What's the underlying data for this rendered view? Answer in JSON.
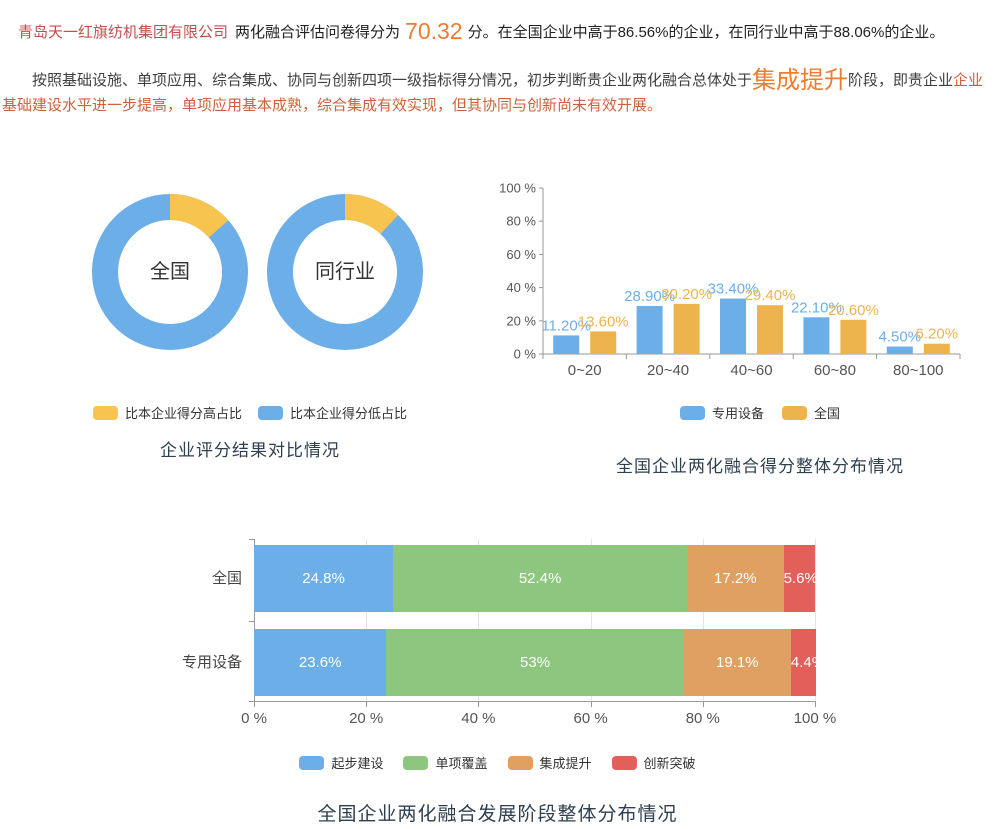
{
  "intro": {
    "company": "青岛天一红旗纺机集团有限公司",
    "lead": "两化融合评估问卷得分为",
    "score": "70.32",
    "tail": "分。在全国企业中高于86.56%的企业，在同行业中高于88.06%的企业。"
  },
  "analysis": {
    "seg1": "按照基础设施、单项应用、综合集成、协同与创新四项一级指标得分情况，初步判断贵企业两化融合总体处于",
    "stage": "集成提升",
    "seg2": "阶段，即贵企业",
    "seg3": "企业基础建设水平进一步提高，单项应用基本成熟，综合集成有效实现，但其协同与创新尚未有效开展。"
  },
  "donut_panel": {
    "title": "企业评分结果对比情况",
    "legend": [
      "比本企业得分高占比",
      "比本企业得分低占比"
    ]
  },
  "bar_panel": {
    "legend": [
      "专用设备",
      "全国"
    ]
  },
  "stacked_panel": {
    "legend": [
      "起步建设",
      "单项覆盖",
      "集成提升",
      "创新突破"
    ]
  },
  "colors": {
    "company_name": "#c0504d",
    "accent_score": "#ed7d31",
    "clause_red": "#d0603c",
    "title_navy": "#2e3f50",
    "axis_gray": "#999999"
  },
  "chart_data": [
    {
      "type": "pie",
      "name": "national-score-donut",
      "label": "全国",
      "slices": [
        {
          "name": "比本企业得分高占比",
          "value": 13.44,
          "color": "#f6c44f"
        },
        {
          "name": "比本企业得分低占比",
          "value": 86.56,
          "color": "#6cafe8"
        }
      ]
    },
    {
      "type": "pie",
      "name": "industry-score-donut",
      "label": "同行业",
      "slices": [
        {
          "name": "比本企业得分高占比",
          "value": 11.94,
          "color": "#f6c44f"
        },
        {
          "name": "比本企业得分低占比",
          "value": 88.06,
          "color": "#6cafe8"
        }
      ]
    },
    {
      "type": "bar",
      "title": "全国企业两化融合得分整体分布情况",
      "categories": [
        "0~20",
        "20~40",
        "40~60",
        "60~80",
        "80~100"
      ],
      "series": [
        {
          "name": "专用设备",
          "color": "#6cafe8",
          "values": [
            11.2,
            28.9,
            33.4,
            22.1,
            4.5
          ],
          "labels": [
            "11.20%",
            "28.90%",
            "33.40%",
            "22.10%",
            "4.50%"
          ]
        },
        {
          "name": "全国",
          "color": "#edb44e",
          "values": [
            13.6,
            30.2,
            29.4,
            20.6,
            6.2
          ],
          "labels": [
            "13.60%",
            "30.20%",
            "29.40%",
            "20.60%",
            "6.20%"
          ]
        }
      ],
      "ylim": [
        0,
        100
      ],
      "ytick_labels": [
        "0 %",
        "20 %",
        "40 %",
        "60 %",
        "80 %",
        "100 %"
      ],
      "grid": false,
      "legend_position": "bottom"
    },
    {
      "type": "bar-stacked",
      "title": "全国企业两化融合发展阶段整体分布情况",
      "categories": [
        "全国",
        "专用设备"
      ],
      "series": [
        {
          "name": "起步建设",
          "color": "#6cafe8",
          "values": [
            24.8,
            23.6
          ]
        },
        {
          "name": "单项覆盖",
          "color": "#8dc67e",
          "values": [
            52.4,
            53
          ]
        },
        {
          "name": "集成提升",
          "color": "#e0a062",
          "values": [
            17.2,
            19.1
          ]
        },
        {
          "name": "创新突破",
          "color": "#e3605a",
          "values": [
            5.6,
            4.4
          ]
        }
      ],
      "value_labels": [
        [
          "24.8%",
          "52.4%",
          "17.2%",
          "5.6%"
        ],
        [
          "23.6%",
          "53%",
          "19.1%",
          "4.4%"
        ]
      ],
      "xlim": [
        0,
        100
      ],
      "xtick_labels": [
        "0 %",
        "20 %",
        "40 %",
        "60 %",
        "80 %",
        "100 %"
      ],
      "grid": true,
      "legend_position": "bottom"
    }
  ]
}
